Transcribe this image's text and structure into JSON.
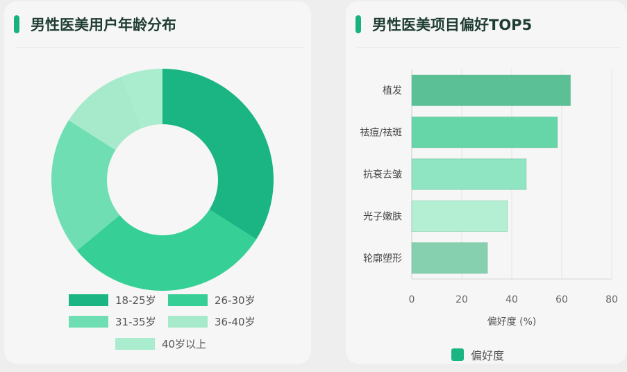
{
  "chart_data": [
    {
      "type": "pie",
      "title": "男性医美用户年龄分布",
      "categories": [
        "18-25岁",
        "26-30岁",
        "31-35岁",
        "36-40岁",
        "40岁以上"
      ],
      "values": [
        34,
        30,
        20,
        10,
        6
      ],
      "colors": [
        "#1ab582",
        "#36cf95",
        "#6fdfb3",
        "#a6eacb",
        "#a9ecce"
      ],
      "donut": true,
      "legend": "bottom"
    },
    {
      "type": "bar",
      "orientation": "horizontal",
      "title": "男性医美项目偏好TOP5",
      "categories": [
        "植发",
        "祛痘/祛斑",
        "抗衰去皱",
        "光子嫩肤",
        "轮廓塑形"
      ],
      "series": [
        {
          "name": "偏好度",
          "values": [
            63.5,
            58.3,
            45.8,
            38.3,
            30.3
          ]
        }
      ],
      "colors": [
        "#5cc097",
        "#66d6a9",
        "#8fe4c1",
        "#b4efd4",
        "#86d0b0"
      ],
      "xlabel": "偏好度 (%)",
      "xlim": [
        0,
        80
      ],
      "xticks": [
        "0",
        "20",
        "40",
        "60",
        "80"
      ],
      "grid": true,
      "legend": "bottom",
      "legend_color": "#1ab582"
    }
  ]
}
